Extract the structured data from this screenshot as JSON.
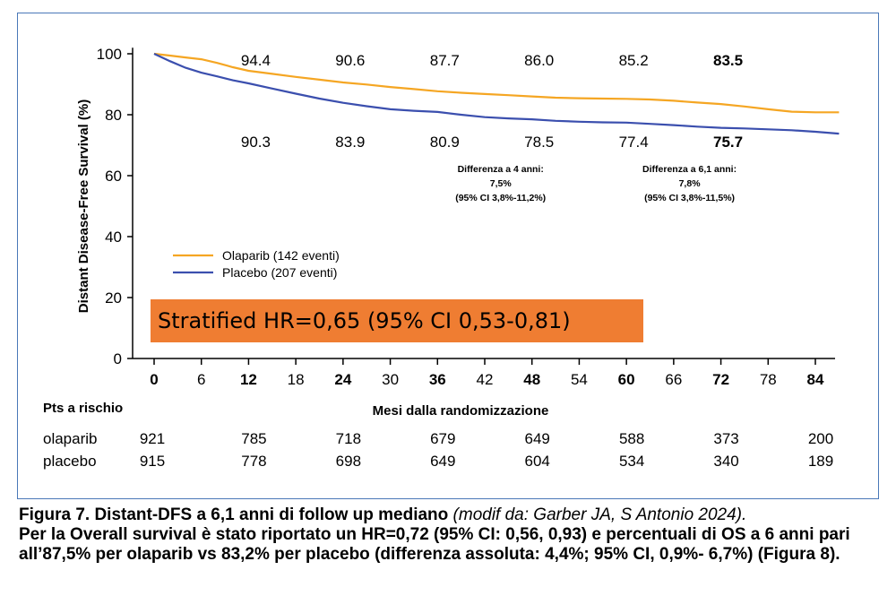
{
  "chart_data": {
    "type": "line",
    "ylabel": "Distant Disease-Free Survival  (%)",
    "xlabel": "Mesi dalla randomizzazione",
    "ylim": [
      0,
      100
    ],
    "xlim": [
      0,
      84
    ],
    "yticks": [
      "0",
      "20",
      "40",
      "60",
      "80",
      "100"
    ],
    "xticks": [
      {
        "label": "0",
        "bold": true
      },
      {
        "label": "6",
        "bold": false
      },
      {
        "label": "12",
        "bold": true
      },
      {
        "label": "18",
        "bold": false
      },
      {
        "label": "24",
        "bold": true
      },
      {
        "label": "30",
        "bold": false
      },
      {
        "label": "36",
        "bold": true
      },
      {
        "label": "42",
        "bold": false
      },
      {
        "label": "48",
        "bold": true
      },
      {
        "label": "54",
        "bold": false
      },
      {
        "label": "60",
        "bold": true
      },
      {
        "label": "66",
        "bold": false
      },
      {
        "label": "72",
        "bold": true
      },
      {
        "label": "78",
        "bold": false
      },
      {
        "label": "84",
        "bold": true
      }
    ],
    "series": [
      {
        "name": "Olaparib (142 eventi)",
        "color": "#f5a623",
        "points": [
          [
            0,
            100
          ],
          [
            2,
            99.4
          ],
          [
            4,
            98.8
          ],
          [
            6,
            98.2
          ],
          [
            8,
            97.0
          ],
          [
            10,
            95.6
          ],
          [
            12,
            94.4
          ],
          [
            15,
            93.4
          ],
          [
            18,
            92.4
          ],
          [
            21,
            91.5
          ],
          [
            24,
            90.6
          ],
          [
            27,
            89.9
          ],
          [
            30,
            89.1
          ],
          [
            33,
            88.4
          ],
          [
            36,
            87.7
          ],
          [
            39,
            87.2
          ],
          [
            42,
            86.8
          ],
          [
            45,
            86.4
          ],
          [
            48,
            86.0
          ],
          [
            51,
            85.6
          ],
          [
            54,
            85.4
          ],
          [
            57,
            85.3
          ],
          [
            60,
            85.2
          ],
          [
            63,
            85.0
          ],
          [
            66,
            84.6
          ],
          [
            69,
            84.0
          ],
          [
            72,
            83.5
          ],
          [
            75,
            82.7
          ],
          [
            78,
            81.8
          ],
          [
            81,
            81.0
          ],
          [
            84,
            80.8
          ],
          [
            87,
            80.8
          ]
        ]
      },
      {
        "name": "Placebo  (207 eventi)",
        "color": "#3b4fae",
        "points": [
          [
            0,
            100
          ],
          [
            2,
            97.6
          ],
          [
            4,
            95.4
          ],
          [
            6,
            93.8
          ],
          [
            8,
            92.6
          ],
          [
            10,
            91.3
          ],
          [
            12,
            90.3
          ],
          [
            15,
            88.6
          ],
          [
            18,
            86.9
          ],
          [
            21,
            85.3
          ],
          [
            24,
            83.9
          ],
          [
            27,
            82.8
          ],
          [
            30,
            81.8
          ],
          [
            33,
            81.3
          ],
          [
            36,
            80.9
          ],
          [
            39,
            80.0
          ],
          [
            42,
            79.2
          ],
          [
            45,
            78.8
          ],
          [
            48,
            78.5
          ],
          [
            51,
            78.0
          ],
          [
            54,
            77.7
          ],
          [
            57,
            77.5
          ],
          [
            60,
            77.4
          ],
          [
            63,
            77.0
          ],
          [
            66,
            76.6
          ],
          [
            69,
            76.1
          ],
          [
            72,
            75.7
          ],
          [
            75,
            75.5
          ],
          [
            78,
            75.2
          ],
          [
            81,
            74.9
          ],
          [
            84,
            74.4
          ],
          [
            87,
            73.8
          ]
        ]
      }
    ],
    "labels_olaparib": [
      {
        "x": 12,
        "text": "94.4",
        "bold": false
      },
      {
        "x": 24,
        "text": "90.6",
        "bold": false
      },
      {
        "x": 36,
        "text": "87.7",
        "bold": false
      },
      {
        "x": 48,
        "text": "86.0",
        "bold": false
      },
      {
        "x": 60,
        "text": "85.2",
        "bold": false
      },
      {
        "x": 72,
        "text": "83.5",
        "bold": true
      }
    ],
    "labels_placebo": [
      {
        "x": 12,
        "text": "90.3",
        "bold": false
      },
      {
        "x": 24,
        "text": "83.9",
        "bold": false
      },
      {
        "x": 36,
        "text": "80.9",
        "bold": false
      },
      {
        "x": 48,
        "text": "78.5",
        "bold": false
      },
      {
        "x": 60,
        "text": "77.4",
        "bold": false
      },
      {
        "x": 72,
        "text": "75.7",
        "bold": true
      }
    ],
    "annotations": [
      {
        "x": 48,
        "lines": [
          "Differenza  a 4 anni:",
          "7,5%",
          "(95% CI 3,8%-11,2%)"
        ]
      },
      {
        "x": 72,
        "lines": [
          "Differenza a 6,1 anni:",
          "7,8%",
          "(95% CI 3,8%-11,5%)"
        ]
      }
    ],
    "hr_box": {
      "text": "Stratified HR=0,65 (95% CI 0,53-0,81)",
      "color": "#ef7d32"
    },
    "risk_table": {
      "title": "Pts a rischio",
      "x": [
        0,
        12,
        24,
        36,
        48,
        60,
        72,
        84
      ],
      "rows": [
        {
          "name": "olaparib",
          "values": [
            "921",
            "785",
            "718",
            "679",
            "649",
            "588",
            "373",
            "200"
          ]
        },
        {
          "name": "placebo",
          "values": [
            "915",
            "778",
            "698",
            "649",
            "604",
            "534",
            "340",
            "189"
          ]
        }
      ]
    }
  },
  "caption": {
    "part1": "Figura 7. Distant-DFS a 6,1 anni di follow up mediano ",
    "part2": "(modif da: Garber JA, S Antonio 2024).",
    "part3": "Per la Overall survival è stato riportato un HR=0,72 (95% CI: 0,56, 0,93) e  percentuali di OS a 6 anni  pari all’87,5%  per olaparib vs 83,2% per placebo (differenza assoluta: 4,4%; 95% CI, 0,9%- 6,7%) (Figura 8)."
  }
}
